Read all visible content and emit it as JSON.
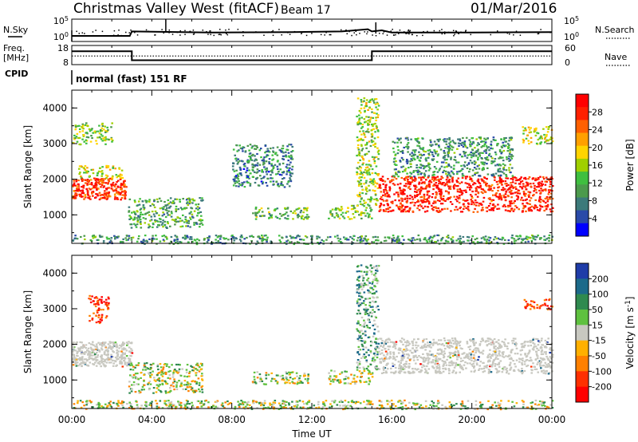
{
  "header": {
    "station": "Christmas Valley West (fitACF)",
    "beam": "Beam 17",
    "date": "01/Mar/2016"
  },
  "left_labels": {
    "nsky": "N.Sky",
    "freq": "Freq.",
    "freq_unit": "[MHz]",
    "cpid": "CPID"
  },
  "right_labels": {
    "nsearch": "N.Search",
    "nave": "Nave"
  },
  "cpid_value": "normal (fast) 151 RF",
  "chart_data": [
    {
      "type": "line",
      "panel": "noise",
      "y_ticks_left": [
        "10^5",
        "10^0"
      ],
      "y_ticks_right": [
        "10^5",
        "10^0"
      ],
      "series": [
        {
          "name": "N.Sky",
          "x": [
            0,
            2.9,
            3.0,
            7.0,
            11.0,
            13.5,
            14.8,
            15.0,
            15.5,
            16.0,
            20.0,
            24.0
          ],
          "values": [
            0.25,
            0.25,
            0.45,
            0.4,
            0.42,
            0.45,
            0.55,
            0.45,
            0.5,
            0.4,
            0.4,
            0.42
          ]
        }
      ],
      "xlim": [
        0,
        24
      ]
    },
    {
      "type": "line",
      "panel": "frequency",
      "y_ticks_left": [
        "18",
        "8"
      ],
      "y_ticks_right": [
        "60",
        "0"
      ],
      "series": [
        {
          "name": "Freq.",
          "x": [
            0,
            3.0,
            3.0,
            15.0,
            15.0,
            24
          ],
          "values": [
            15.0,
            15.0,
            10.3,
            10.3,
            15.0,
            15.0
          ]
        },
        {
          "name": "Nave",
          "x": [
            0,
            24
          ],
          "values": [
            12.5,
            12.5
          ]
        }
      ],
      "xlim": [
        0,
        24
      ]
    },
    {
      "type": "heatmap",
      "panel": "power",
      "title": "",
      "xlabel": "",
      "ylabel": "Slant Range [km]",
      "ylim": [
        200,
        4500
      ],
      "xlim": [
        0,
        24
      ],
      "y_ticks": [
        1000,
        2000,
        3000,
        4000
      ],
      "colorbar": {
        "label": "Power [dB]",
        "ticks": [
          "4",
          "8",
          "12",
          "16",
          "20",
          "24",
          "28"
        ],
        "colors": [
          "#0000ff",
          "#2a4aa8",
          "#3c7a7a",
          "#4c9a4c",
          "#3fbf3f",
          "#a0d000",
          "#ffd400",
          "#ffa000",
          "#ff6000",
          "#ff2000",
          "#ff0000"
        ]
      },
      "regions": [
        {
          "t0": 0.0,
          "t1": 2.7,
          "r0": 1450,
          "r1": 2050,
          "level": 0.85
        },
        {
          "t0": 0.3,
          "t1": 2.5,
          "r0": 2050,
          "r1": 2400,
          "level": 0.55
        },
        {
          "t0": 0.0,
          "t1": 2.0,
          "r0": 3000,
          "r1": 3600,
          "level": 0.45
        },
        {
          "t0": 2.8,
          "t1": 6.5,
          "r0": 650,
          "r1": 1500,
          "level": 0.35
        },
        {
          "t0": 8.0,
          "t1": 11.0,
          "r0": 1800,
          "r1": 3000,
          "level": 0.25
        },
        {
          "t0": 9.0,
          "t1": 11.8,
          "r0": 900,
          "r1": 1250,
          "level": 0.4
        },
        {
          "t0": 12.8,
          "t1": 15.0,
          "r0": 900,
          "r1": 1300,
          "level": 0.45
        },
        {
          "t0": 14.2,
          "t1": 15.3,
          "r0": 1300,
          "r1": 4300,
          "level": 0.5
        },
        {
          "t0": 15.3,
          "t1": 24.0,
          "r0": 1100,
          "r1": 2100,
          "level": 0.9
        },
        {
          "t0": 16.0,
          "t1": 22.0,
          "r0": 2100,
          "r1": 3200,
          "level": 0.3
        },
        {
          "t0": 22.5,
          "t1": 24.0,
          "r0": 3000,
          "r1": 3500,
          "level": 0.55
        },
        {
          "t0": 0.0,
          "t1": 24.0,
          "r0": 200,
          "r1": 450,
          "level": 0.3
        }
      ]
    },
    {
      "type": "heatmap",
      "panel": "velocity",
      "title": "",
      "xlabel": "Time UT",
      "ylabel": "Slant Range [km]",
      "ylim": [
        200,
        4500
      ],
      "xlim": [
        0,
        24
      ],
      "y_ticks": [
        1000,
        2000,
        3000,
        4000
      ],
      "x_ticks": [
        "00:00",
        "04:00",
        "08:00",
        "12:00",
        "16:00",
        "20:00",
        "00:00"
      ],
      "colorbar": {
        "label": "Velocity [m s^-1]",
        "ticks": [
          "200",
          "100",
          "50",
          "15",
          "-15",
          "-50",
          "-100",
          "-200"
        ],
        "colors": [
          "#1f3ca8",
          "#1c6a8a",
          "#2f8a4f",
          "#5fc13f",
          "#c8c8c0",
          "#ffb000",
          "#ff8000",
          "#ff3000",
          "#ff0000"
        ]
      },
      "regions": [
        {
          "t0": 0.0,
          "t1": 3.0,
          "r0": 1400,
          "r1": 2100,
          "class": "gs"
        },
        {
          "t0": 0.8,
          "t1": 1.8,
          "r0": 2600,
          "r1": 3400,
          "class": "neg"
        },
        {
          "t0": 2.8,
          "t1": 6.5,
          "r0": 650,
          "r1": 1500,
          "class": "mixed"
        },
        {
          "t0": 9.0,
          "t1": 11.8,
          "r0": 900,
          "r1": 1250,
          "class": "mixed"
        },
        {
          "t0": 12.8,
          "t1": 15.0,
          "r0": 900,
          "r1": 1300,
          "class": "mixed"
        },
        {
          "t0": 14.2,
          "t1": 15.3,
          "r0": 1300,
          "r1": 4300,
          "class": "pos"
        },
        {
          "t0": 15.3,
          "t1": 24.0,
          "r0": 1200,
          "r1": 2200,
          "class": "gs"
        },
        {
          "t0": 22.5,
          "t1": 24.0,
          "r0": 3000,
          "r1": 3300,
          "class": "neg"
        },
        {
          "t0": 0.0,
          "t1": 24.0,
          "r0": 200,
          "r1": 450,
          "class": "mixed"
        }
      ]
    }
  ]
}
